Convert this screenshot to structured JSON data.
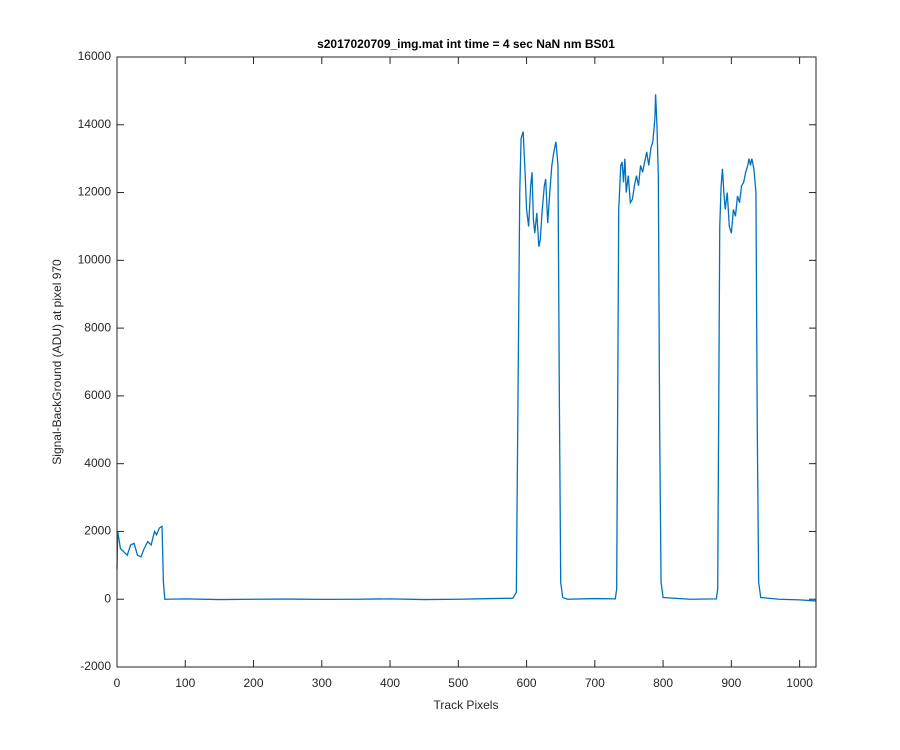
{
  "chart_data": {
    "type": "line",
    "title": "s2017020709_img.mat int time = 4 sec  NaN nm BS01",
    "xlabel": "Track Pixels",
    "ylabel": "Signal-BackGround (ADU) at pixel 970",
    "color": "#0072bd",
    "xlim": [
      0,
      1024
    ],
    "ylim": [
      -2000,
      16000
    ],
    "xticks": [
      0,
      100,
      200,
      300,
      400,
      500,
      600,
      700,
      800,
      900,
      1000
    ],
    "yticks": [
      -2000,
      0,
      2000,
      4000,
      6000,
      8000,
      10000,
      12000,
      14000,
      16000
    ],
    "x": [
      0,
      1,
      5,
      10,
      15,
      20,
      25,
      30,
      35,
      40,
      45,
      50,
      55,
      58,
      62,
      66,
      68,
      70,
      100,
      150,
      200,
      250,
      300,
      350,
      400,
      450,
      500,
      550,
      580,
      585,
      590,
      592,
      595,
      598,
      600,
      603,
      606,
      608,
      610,
      612,
      615,
      618,
      620,
      623,
      626,
      628,
      631,
      634,
      637,
      640,
      643,
      646,
      648,
      650,
      653,
      660,
      700,
      730,
      732,
      735,
      738,
      740,
      742,
      744,
      746,
      749,
      752,
      755,
      758,
      761,
      764,
      767,
      770,
      773,
      776,
      779,
      782,
      785,
      788,
      789,
      791,
      793,
      795,
      797,
      800,
      840,
      878,
      880,
      883,
      885,
      887,
      889,
      891,
      894,
      897,
      900,
      903,
      906,
      909,
      912,
      915,
      918,
      921,
      924,
      926,
      928,
      930,
      933,
      936,
      938,
      940,
      943,
      970,
      1000,
      1024
    ],
    "values": [
      900,
      2000,
      1500,
      1400,
      1300,
      1600,
      1650,
      1300,
      1250,
      1500,
      1700,
      1600,
      2000,
      1900,
      2100,
      2150,
      500,
      0,
      10,
      -10,
      0,
      5,
      -5,
      0,
      10,
      -10,
      0,
      20,
      30,
      200,
      12000,
      13600,
      13800,
      12500,
      11500,
      11000,
      12200,
      12600,
      11200,
      10800,
      11400,
      10400,
      10600,
      11500,
      12200,
      12400,
      11100,
      12000,
      12800,
      13200,
      13500,
      12800,
      6000,
      500,
      50,
      0,
      20,
      10,
      300,
      11500,
      12800,
      12900,
      12300,
      13000,
      12000,
      12500,
      11700,
      11800,
      12200,
      12500,
      12200,
      12800,
      12600,
      12900,
      13200,
      12800,
      13300,
      13500,
      14200,
      14900,
      14000,
      12500,
      5000,
      500,
      50,
      0,
      10,
      300,
      11000,
      12200,
      12700,
      12000,
      11500,
      12000,
      11000,
      10800,
      11500,
      11300,
      11900,
      11700,
      12200,
      12300,
      12600,
      12800,
      13000,
      12800,
      13000,
      12700,
      12000,
      5000,
      500,
      50,
      0,
      -20,
      -50
    ]
  }
}
